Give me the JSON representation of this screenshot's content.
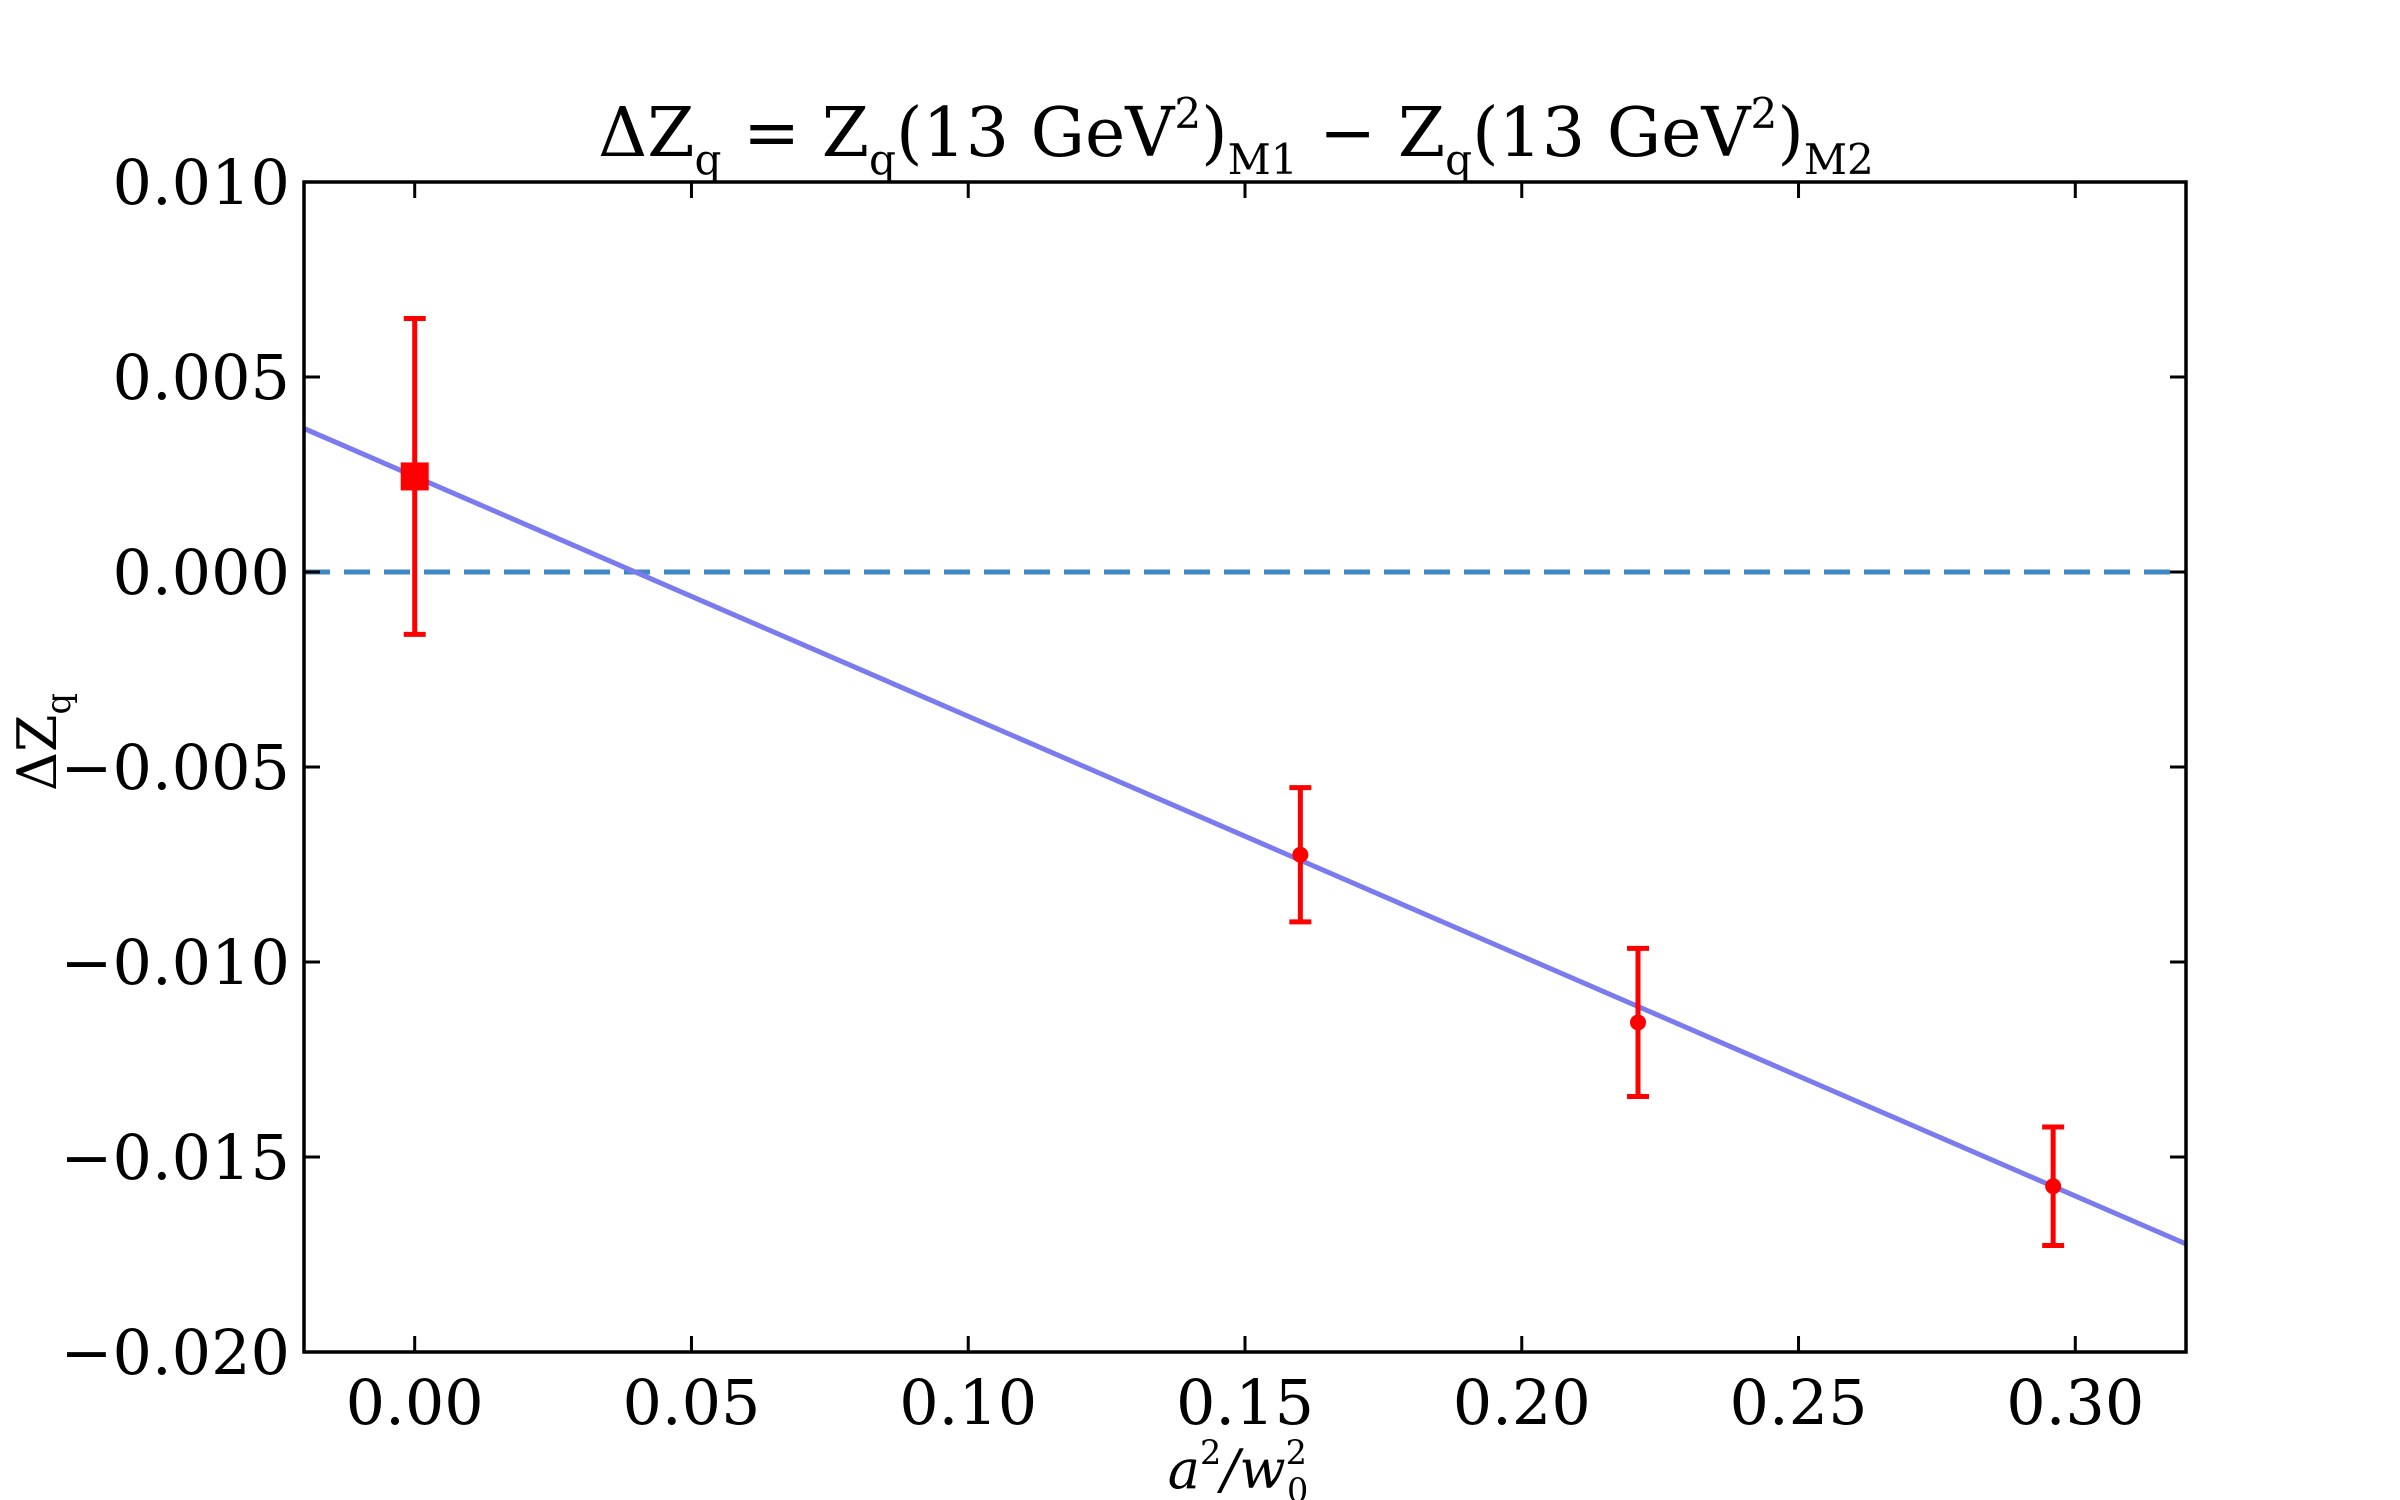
{
  "chart_data": {
    "type": "scatter",
    "title": {
      "prefix": "ΔZ",
      "prefix_sub": "q",
      "eq": " = Z",
      "left_sub": "q",
      "left_arg": "(13 GeV",
      "sup": "2",
      "close": ")",
      "left_tag": "M1",
      "minus": " − Z",
      "right_sub": "q",
      "right_arg": "(13 GeV",
      "right_sup": "2",
      "right_close": ")",
      "right_tag": "M2"
    },
    "xlabel": {
      "a": "a",
      "a_sup": "2",
      "slash": "/w",
      "w_sup": "2",
      "w_sub": "0"
    },
    "ylabel": {
      "main": "ΔZ",
      "sub": "q"
    },
    "xlim": [
      -0.02,
      0.32
    ],
    "ylim": [
      -0.02,
      0.01
    ],
    "x_ticks": [
      0.0,
      0.05,
      0.1,
      0.15,
      0.2,
      0.25,
      0.3
    ],
    "x_tick_labels": [
      "0.00",
      "0.05",
      "0.10",
      "0.15",
      "0.20",
      "0.25",
      "0.30"
    ],
    "y_ticks": [
      0.01,
      0.005,
      0.0,
      -0.005,
      -0.01,
      -0.015,
      -0.02
    ],
    "y_tick_labels": [
      "0.010",
      "0.005",
      "0.000",
      "−0.005",
      "−0.010",
      "−0.015",
      "−0.020"
    ],
    "grid": false,
    "legend": "none",
    "reference_line": {
      "y": 0.0,
      "style": "dashed",
      "color": "#3f88c5"
    },
    "fit_line": {
      "color": "#7b7bf0",
      "slope": -0.0615,
      "intercept": 0.00245
    },
    "data_points": [
      {
        "x": 0.16,
        "y": -0.00725,
        "err": 0.00172,
        "marker": "circle"
      },
      {
        "x": 0.221,
        "y": -0.01155,
        "err": 0.0019,
        "marker": "circle"
      },
      {
        "x": 0.296,
        "y": -0.01575,
        "err": 0.00152,
        "marker": "circle"
      }
    ],
    "extrapolated_point": {
      "x": 0.0,
      "y": 0.00245,
      "err": 0.00405,
      "marker": "square"
    },
    "colors": {
      "points": "#ff0000",
      "axis": "#000000"
    }
  }
}
